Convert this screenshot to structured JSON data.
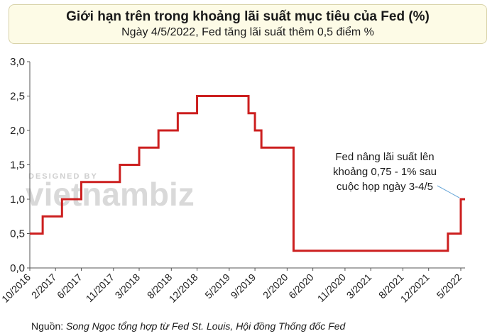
{
  "chart_data": {
    "type": "line",
    "step": true,
    "title": "Giới hạn trên trong khoảng lãi suất mục tiêu của Fed (%)",
    "subtitle": "Ngày 4/5/2022, Fed tăng lãi suất thêm 0,5 điểm %",
    "ylim": [
      0,
      3.0
    ],
    "y_ticks": [
      "0,0",
      "0,5",
      "1,0",
      "1,5",
      "2,0",
      "2,5",
      "3,0"
    ],
    "x_ticks": [
      "10/2016",
      "2/2017",
      "6/2017",
      "11/2017",
      "3/2018",
      "8/2018",
      "12/2018",
      "5/2019",
      "9/2019",
      "2/2020",
      "6/2020",
      "11/2020",
      "3/2021",
      "8/2021",
      "12/2021",
      "5/2022"
    ],
    "grid": false,
    "line_color": "#cc1f1f",
    "series": [
      {
        "x": [
          "10/2016",
          "12/2016",
          "3/2017",
          "6/2017",
          "12/2017",
          "3/2018",
          "6/2018",
          "9/2018",
          "12/2018",
          "8/2019",
          "9/2019",
          "10/2019",
          "3/2020",
          "3/2020",
          "3/2022",
          "5/2022"
        ],
        "values": [
          0.5,
          0.75,
          1.0,
          1.25,
          1.5,
          1.75,
          2.0,
          2.25,
          2.5,
          2.25,
          2.0,
          1.75,
          1.25,
          0.25,
          0.5,
          1.0
        ]
      }
    ],
    "annotation": {
      "lines": [
        "Fed nâng lãi suất lên",
        "khoảng 0,75 - 1% sau",
        "cuộc họp ngày 3-4/5"
      ]
    }
  },
  "watermark": {
    "line1": "DESIGNED BY",
    "line2": "vietnambiz"
  },
  "source": {
    "prefix": "Nguồn: ",
    "text": "Song Ngọc tổng hợp từ Fed St. Louis, Hội đồng Thống đốc Fed"
  }
}
